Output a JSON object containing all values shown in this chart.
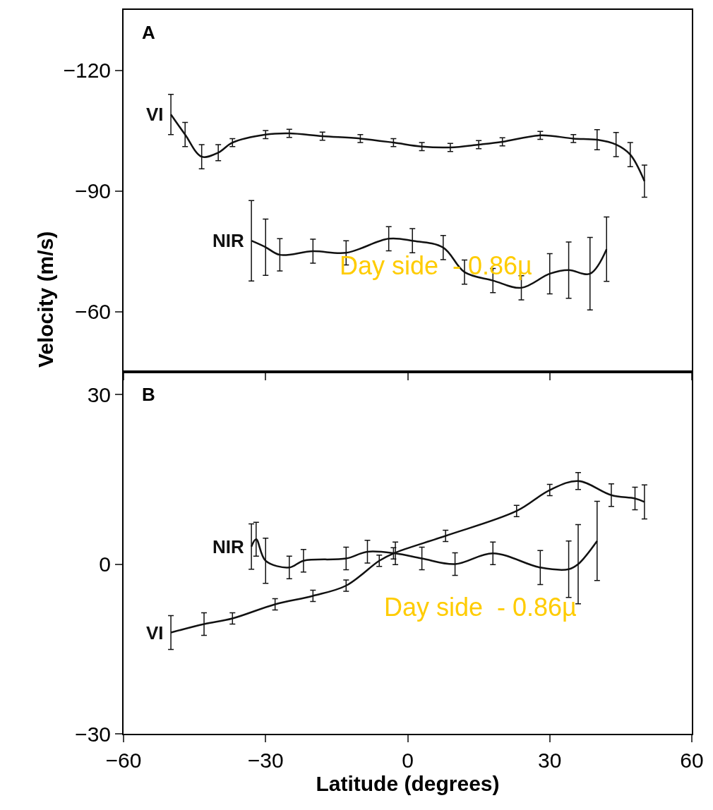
{
  "chart_data": [
    {
      "type": "line",
      "title": "A",
      "xlim": [
        -60,
        60
      ],
      "xticks": [
        -60,
        -30,
        0,
        30,
        60
      ],
      "ylim": [
        -45,
        -135
      ],
      "yticks": [
        -120,
        -90,
        -60
      ],
      "tick_labels": "y",
      "line_style": "solid",
      "series": [
        {
          "name": "VI",
          "color": "#111111",
          "x": [
            -50,
            -47,
            -43.5,
            -40,
            -37,
            -30,
            -25,
            -18,
            -10,
            -3,
            3,
            9,
            15,
            20,
            28,
            35,
            40,
            44,
            47,
            50
          ],
          "values": [
            -109,
            -104,
            -98.5,
            -99.5,
            -102,
            -104,
            -104.3,
            -103.6,
            -103,
            -102,
            -101,
            -100.8,
            -101.5,
            -102.2,
            -103.8,
            -103,
            -102.7,
            -101.5,
            -99,
            -92.4
          ],
          "errors": [
            5,
            3,
            3,
            2,
            1,
            1,
            1,
            1,
            1,
            1,
            1,
            1,
            1,
            1,
            1,
            1,
            2.5,
            3,
            3,
            4
          ]
        },
        {
          "name": "NIR",
          "color": "#111111",
          "x": [
            -33,
            -30,
            -27,
            -20,
            -13,
            -4,
            1,
            7.5,
            12,
            18,
            24,
            30,
            34,
            38.5,
            42
          ],
          "values": [
            -77.6,
            -76,
            -74.1,
            -75,
            -74.6,
            -78.1,
            -77.6,
            -75.9,
            -69.8,
            -67.7,
            -65.9,
            -69.4,
            -70.3,
            -69.4,
            -75.5
          ],
          "errors": [
            10,
            7,
            4,
            3,
            3,
            3,
            3,
            3,
            3,
            3,
            3,
            5,
            7,
            9,
            8
          ]
        }
      ],
      "annotations": [
        "Day side  - 0.86µ"
      ]
    },
    {
      "type": "line",
      "title": "B",
      "xlabel": "Latitude (degrees)",
      "ylabel": "Velocity (m/s)",
      "xlim": [
        -60,
        60
      ],
      "xticks": [
        -60,
        -30,
        0,
        30,
        60
      ],
      "ylim": [
        -30,
        34
      ],
      "yticks": [
        -30,
        0,
        30
      ],
      "line_style": "solid",
      "series": [
        {
          "name": "VI",
          "color": "#111111",
          "x": [
            -50,
            -43,
            -37,
            -28,
            -20,
            -13,
            -6,
            -3,
            8,
            23,
            30,
            36,
            43,
            48,
            50
          ],
          "values": [
            -12.1,
            -10.6,
            -9.6,
            -7.1,
            -5.6,
            -3.8,
            0.6,
            1.9,
            5,
            9.4,
            13.1,
            14.7,
            12.2,
            11.6,
            11
          ],
          "errors": [
            3,
            2,
            1,
            1,
            1,
            1,
            1,
            1,
            1,
            1,
            1,
            1.5,
            2,
            2,
            3
          ]
        },
        {
          "name": "NIR",
          "color": "#111111",
          "x": [
            -33,
            -32,
            -30,
            -25,
            -22,
            -13,
            -8.5,
            -2.6,
            3,
            10,
            18,
            28,
            34,
            36,
            40
          ],
          "values": [
            3.1,
            4.4,
            0.6,
            -0.6,
            0.6,
            1,
            2.2,
            1.9,
            1,
            0,
            1.9,
            -0.6,
            -0.9,
            0,
            4.1
          ],
          "errors": [
            4,
            3,
            4,
            2,
            2,
            2,
            2,
            2,
            2,
            2,
            2,
            3,
            5,
            7,
            7
          ]
        }
      ],
      "annotations": [
        "Day side  - 0.86µ"
      ]
    }
  ]
}
